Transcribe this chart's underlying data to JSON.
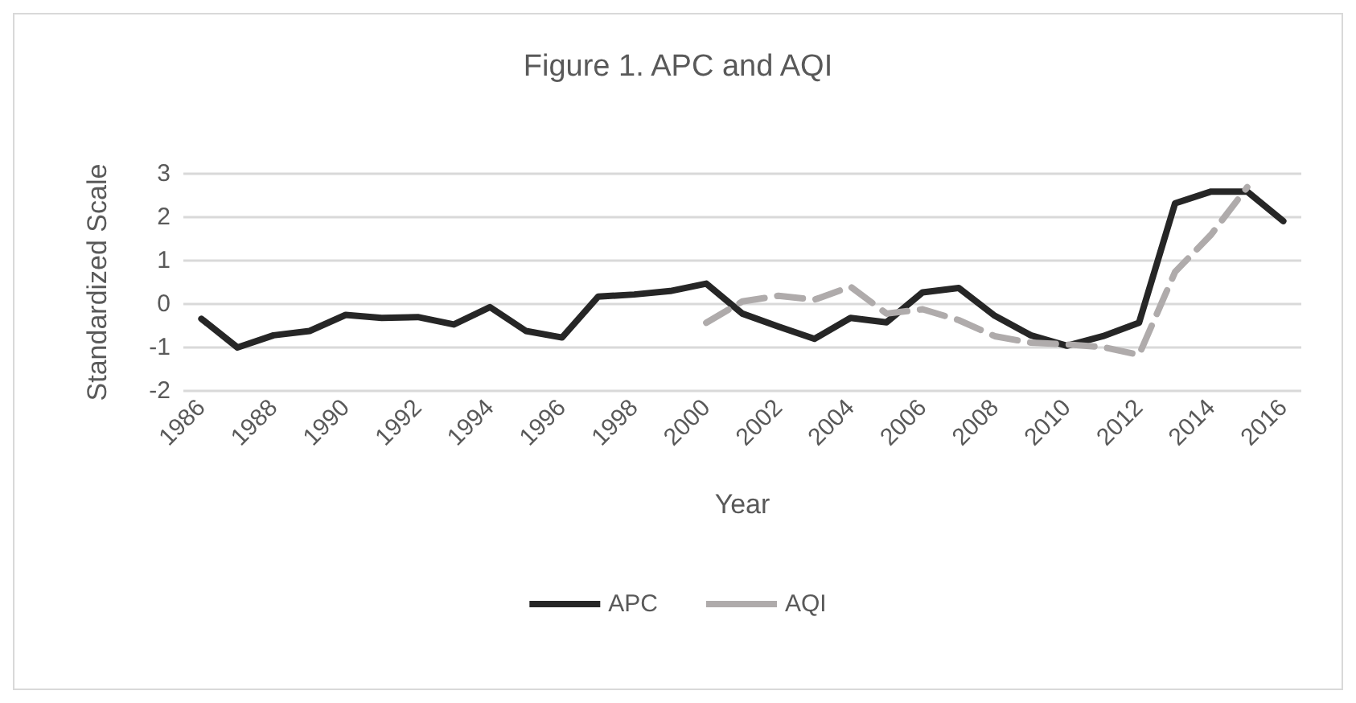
{
  "chart_data": {
    "type": "line",
    "title": "Figure 1. APC and AQI",
    "xlabel": "Year",
    "ylabel": "Standardized Scale",
    "categories": [
      "1986",
      null,
      "1988",
      null,
      "1990",
      null,
      "1992",
      null,
      "1994",
      null,
      "1996",
      null,
      "1998",
      null,
      "2000",
      null,
      "2002",
      null,
      "2004",
      null,
      "2006",
      null,
      "2008",
      null,
      "2010",
      null,
      "2012",
      null,
      "2014",
      null,
      "2016"
    ],
    "series": [
      {
        "name": "APC",
        "color": "#262626",
        "line_style": "solid",
        "values": [
          -0.34,
          -1.0,
          -0.72,
          -0.62,
          -0.25,
          -0.32,
          -0.3,
          -0.47,
          -0.07,
          -0.62,
          -0.77,
          0.17,
          0.22,
          0.3,
          0.47,
          -0.22,
          -0.52,
          -0.8,
          -0.32,
          -0.42,
          0.27,
          0.37,
          -0.27,
          -0.72,
          -0.96,
          -0.74,
          -0.43,
          2.32,
          2.59,
          2.59,
          1.91
        ]
      },
      {
        "name": "AQI",
        "color": "#afabab",
        "line_style": "dashed",
        "values": [
          null,
          null,
          null,
          null,
          null,
          null,
          null,
          null,
          null,
          null,
          null,
          null,
          null,
          null,
          -0.43,
          0.06,
          0.19,
          0.1,
          0.4,
          -0.22,
          -0.12,
          -0.37,
          -0.74,
          -0.89,
          -0.93,
          -0.99,
          -1.17,
          0.74,
          1.6,
          2.69,
          null
        ]
      }
    ],
    "ylim": [
      -2,
      3
    ],
    "yticks": [
      -2,
      -1,
      0,
      1,
      2,
      3
    ],
    "grid": "y",
    "legend": "bottom",
    "marker": "none"
  }
}
